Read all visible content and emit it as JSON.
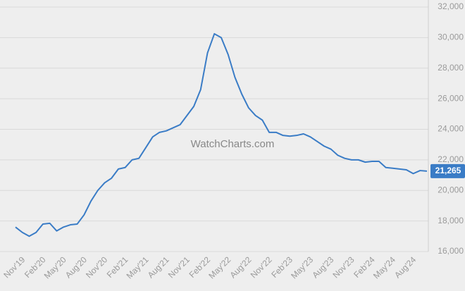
{
  "chart_data": {
    "type": "line",
    "watermark": "WatchCharts.com",
    "categories": [
      "Nov'19",
      null,
      null,
      "Feb'20",
      null,
      null,
      "May'20",
      null,
      null,
      "Aug'20",
      null,
      null,
      "Nov'20",
      null,
      null,
      "Feb'21",
      null,
      null,
      "May'21",
      null,
      null,
      "Aug'21",
      null,
      null,
      "Nov'21",
      null,
      null,
      "Feb'22",
      null,
      null,
      "May'22",
      null,
      null,
      "Aug'22",
      null,
      null,
      "Nov'22",
      null,
      null,
      "Feb'23",
      null,
      null,
      "May'23",
      null,
      null,
      "Aug'23",
      null,
      null,
      "Nov'23",
      null,
      null,
      "Feb'24",
      null,
      null,
      "May'24",
      null,
      null,
      "Aug'24",
      null,
      null,
      null
    ],
    "series": [
      {
        "color": "#3a7cc6",
        "values": [
          17600,
          17250,
          17000,
          17250,
          17800,
          17850,
          17350,
          17600,
          17750,
          17800,
          18400,
          19300,
          20000,
          20500,
          20800,
          21400,
          21500,
          22000,
          22100,
          22800,
          23500,
          23800,
          23900,
          24100,
          24300,
          24900,
          25500,
          26600,
          29000,
          30250,
          30000,
          28900,
          27400,
          26300,
          25400,
          24900,
          24600,
          23800,
          23800,
          23600,
          23550,
          23600,
          23700,
          23500,
          23200,
          22900,
          22700,
          22300,
          22100,
          22000,
          22000,
          21850,
          21900,
          21900,
          21500,
          21450,
          21400,
          21350,
          21100,
          21300,
          21265
        ],
        "value_labels": [
          null,
          null,
          null,
          null,
          null,
          null,
          null,
          null,
          null,
          null,
          null,
          null,
          null,
          null,
          null,
          null,
          null,
          null,
          null,
          null,
          null,
          null,
          null,
          null,
          null,
          null,
          null,
          null,
          null,
          null,
          null,
          null,
          null,
          null,
          null,
          null,
          null,
          null,
          null,
          null,
          null,
          null,
          null,
          null,
          null,
          null,
          null,
          null,
          null,
          null,
          null,
          null,
          null,
          null,
          null,
          null,
          null,
          null,
          null,
          null,
          "21,265"
        ]
      }
    ],
    "ylim": [
      16000,
      32000
    ],
    "yticks": [
      {
        "value": 16000,
        "label": "16,000"
      },
      {
        "value": 18000,
        "label": "18,000"
      },
      {
        "value": 20000,
        "label": "20,000"
      },
      {
        "value": 22000,
        "label": "22,000"
      },
      {
        "value": 24000,
        "label": "24,000"
      },
      {
        "value": 26000,
        "label": "26,000"
      },
      {
        "value": 28000,
        "label": "28,000"
      },
      {
        "value": 30000,
        "label": "30,000"
      },
      {
        "value": 32000,
        "label": "32,000"
      }
    ],
    "grid": true,
    "y_axis_side": "right"
  }
}
